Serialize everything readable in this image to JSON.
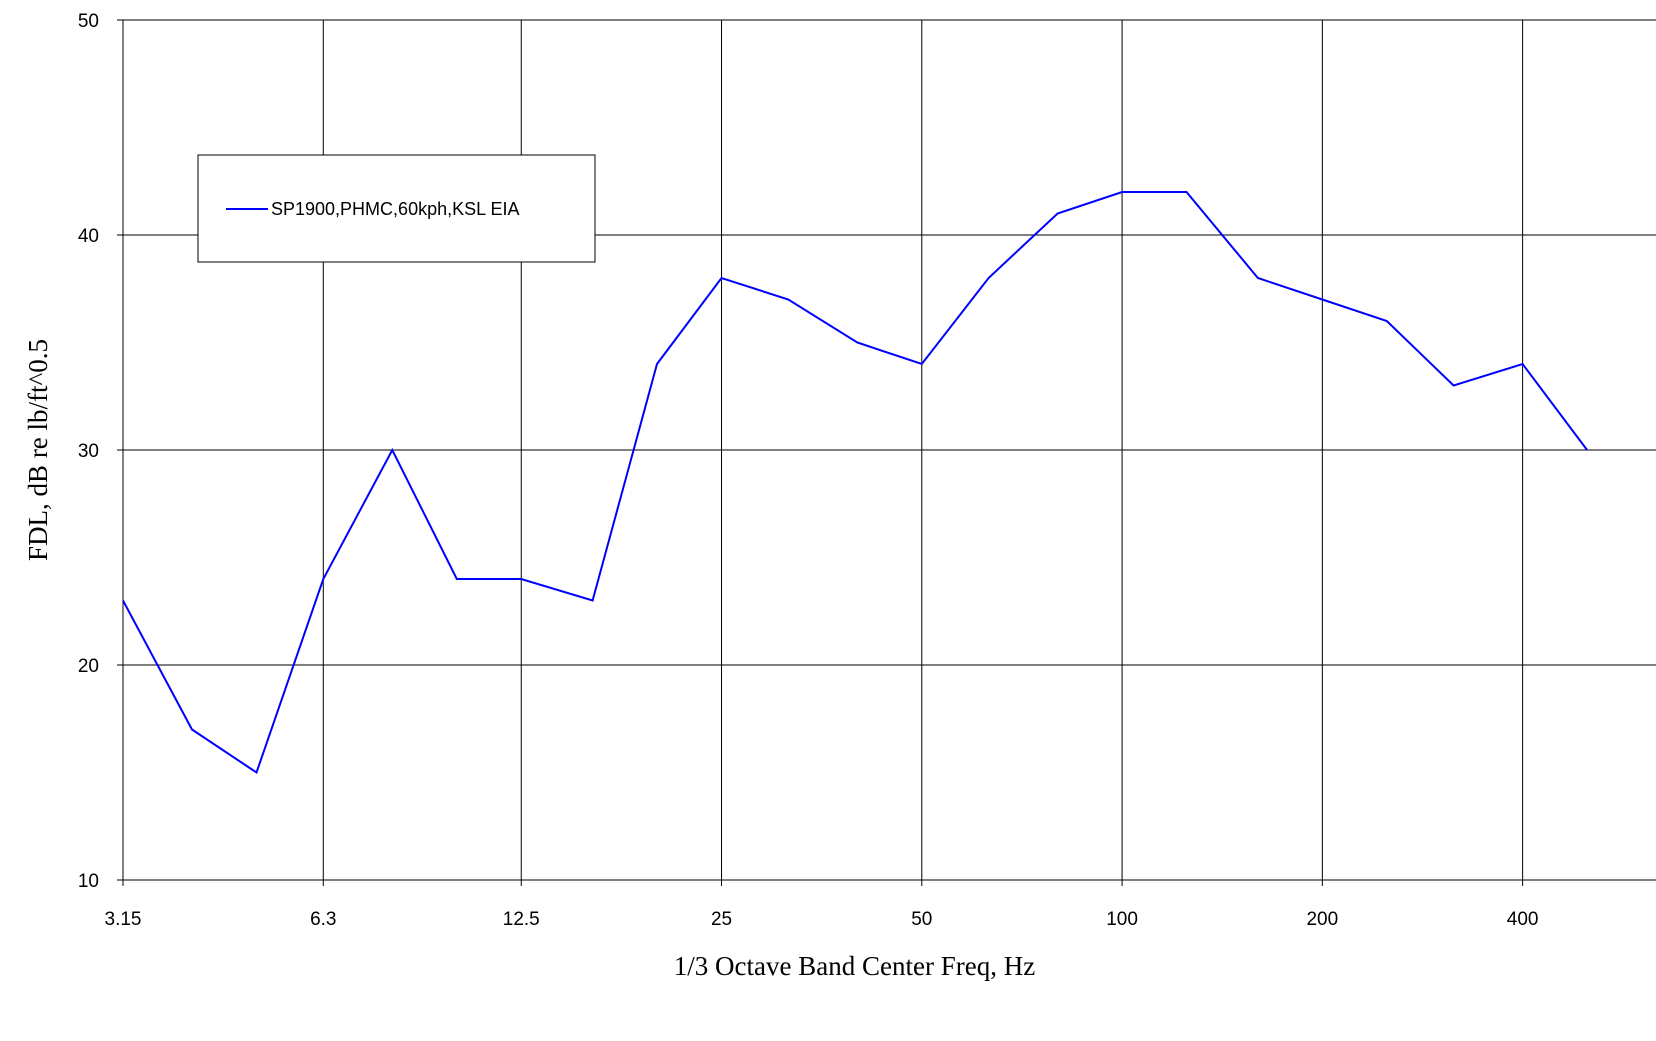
{
  "chart_data": {
    "type": "line",
    "xscale": "log",
    "xlabel": "1/3 Octave Band Center Freq, Hz",
    "ylabel": "FDL, dB re lb/ft^0.5",
    "ylim": [
      10,
      50
    ],
    "yticks": [
      "10",
      "20",
      "30",
      "40",
      "50"
    ],
    "xtick_labels": [
      "3.15",
      "6.3",
      "12.5",
      "25",
      "50",
      "100",
      "200",
      "400"
    ],
    "grid": true,
    "legend_position": "top-left",
    "x": [
      3.15,
      4,
      5,
      6.3,
      8,
      10,
      12.5,
      16,
      20,
      25,
      31.5,
      40,
      50,
      63,
      80,
      100,
      125,
      160,
      200,
      250,
      315,
      400,
      500
    ],
    "series": [
      {
        "name": "SP1900,PHMC,60kph,KSL EIA",
        "color": "#0000ff",
        "values": [
          23,
          17,
          15,
          24,
          30,
          24,
          24,
          23,
          34,
          38,
          37,
          35,
          34,
          38,
          41,
          42,
          42,
          38,
          37,
          36,
          33,
          34,
          30
        ]
      }
    ]
  }
}
